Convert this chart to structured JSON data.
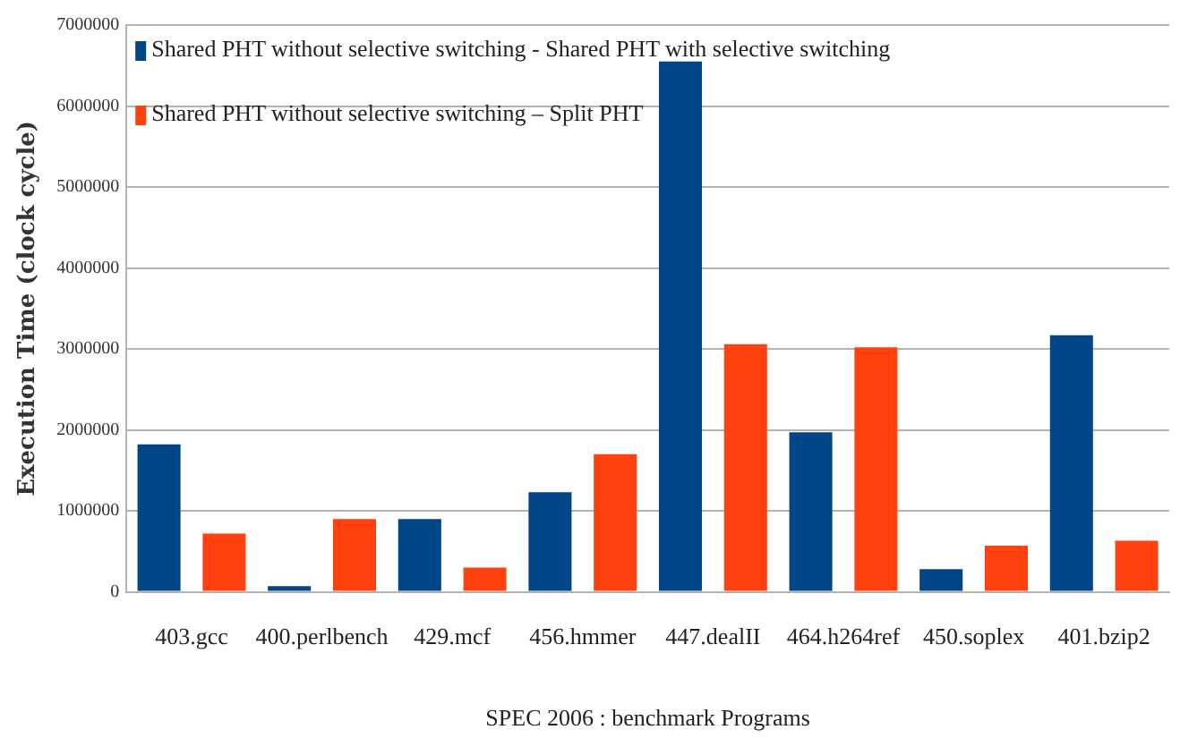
{
  "chart_data": {
    "type": "bar",
    "xlabel": "SPEC 2006 : benchmark Programs",
    "ylabel": "Execution Time (clock cycle)",
    "categories": [
      "403.gcc",
      "400.perlbench",
      "429.mcf",
      "456.hmmer",
      "447.dealII",
      "464.h264ref",
      "450.soplex",
      "401.bzip2"
    ],
    "series": [
      {
        "name": "Shared PHT without selective switching - Shared PHT with selective switching",
        "color": "#004586",
        "values": [
          1820000,
          70000,
          900000,
          1230000,
          6550000,
          1970000,
          280000,
          3170000
        ]
      },
      {
        "name": "Shared PHT without selective switching – Split PHT",
        "color": "#ff420e",
        "values": [
          720000,
          900000,
          300000,
          1700000,
          3060000,
          3020000,
          570000,
          630000
        ]
      }
    ],
    "ylim": [
      0,
      7000000
    ],
    "yticks": [
      0,
      1000000,
      2000000,
      3000000,
      4000000,
      5000000,
      6000000,
      7000000
    ],
    "grid": "y",
    "legend": "top left"
  }
}
